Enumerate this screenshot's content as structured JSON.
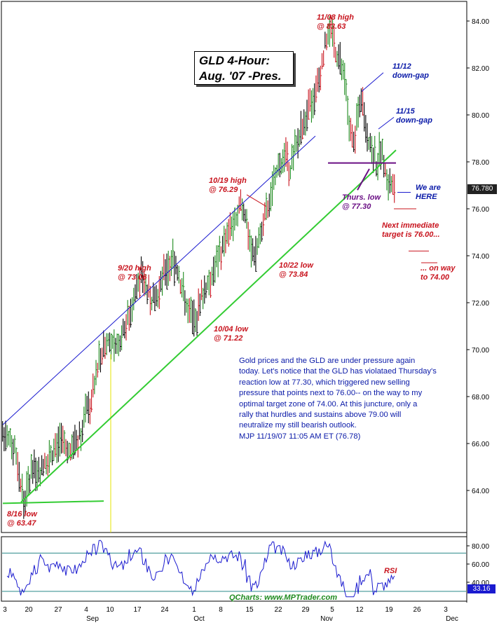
{
  "chart_data": [
    {
      "type": "ohlc",
      "panel": "price",
      "title_lines": [
        "GLD 4-Hour:",
        "Aug. '07 -Pres."
      ],
      "ylim": [
        62.5,
        84.8
      ],
      "y_ticks": [
        "64.00",
        "66.00",
        "68.00",
        "70.00",
        "72.00",
        "74.00",
        "76.00",
        "78.00",
        "80.00",
        "82.00",
        "84.00"
      ],
      "last_price_label": "76.780",
      "x_labels": [
        "3",
        "Sep",
        "10",
        "17",
        "24",
        "Oct",
        "8",
        "15",
        "22",
        "29",
        "Nov",
        "12",
        "19",
        "26",
        "3",
        "Dec"
      ],
      "x_labels_top": [
        "3",
        "10",
        "17",
        "24",
        "1",
        "8",
        "15",
        "22",
        "29",
        "5",
        "12",
        "19",
        "26",
        "3"
      ],
      "close_path": [
        [
          0,
          66.4
        ],
        [
          1,
          66.1
        ],
        [
          2,
          65.9
        ],
        [
          3,
          64.6
        ],
        [
          4,
          63.5
        ],
        [
          5,
          64.2
        ],
        [
          6,
          65.1
        ],
        [
          7,
          64.8
        ],
        [
          8,
          65.0
        ],
        [
          9,
          65.2
        ],
        [
          10,
          65.6
        ],
        [
          11,
          65.7
        ],
        [
          12,
          66.1
        ],
        [
          13,
          65.9
        ],
        [
          14,
          65.6
        ],
        [
          15,
          66.0
        ],
        [
          16,
          66.3
        ],
        [
          17,
          66.7
        ],
        [
          18,
          67.4
        ],
        [
          19,
          67.8
        ],
        [
          20,
          68.9
        ],
        [
          21,
          69.8
        ],
        [
          22,
          70.2
        ],
        [
          23,
          70.5
        ],
        [
          24,
          69.9
        ],
        [
          25,
          70.3
        ],
        [
          26,
          70.8
        ],
        [
          27,
          71.3
        ],
        [
          28,
          71.9
        ],
        [
          29,
          72.6
        ],
        [
          30,
          73.06
        ],
        [
          31,
          72.7
        ],
        [
          32,
          72.2
        ],
        [
          33,
          72.0
        ],
        [
          34,
          72.4
        ],
        [
          35,
          73.1
        ],
        [
          36,
          73.6
        ],
        [
          37,
          73.9
        ],
        [
          38,
          73.4
        ],
        [
          39,
          72.6
        ],
        [
          40,
          71.9
        ],
        [
          41,
          71.4
        ],
        [
          42,
          71.22
        ],
        [
          43,
          72.0
        ],
        [
          44,
          72.6
        ],
        [
          45,
          73.0
        ],
        [
          46,
          73.4
        ],
        [
          47,
          73.8
        ],
        [
          48,
          74.4
        ],
        [
          49,
          74.9
        ],
        [
          50,
          75.3
        ],
        [
          51,
          75.7
        ],
        [
          52,
          76.29
        ],
        [
          53,
          75.6
        ],
        [
          54,
          74.6
        ],
        [
          55,
          73.84
        ],
        [
          56,
          74.6
        ],
        [
          57,
          75.4
        ],
        [
          58,
          76.0
        ],
        [
          59,
          76.8
        ],
        [
          60,
          77.5
        ],
        [
          61,
          77.9
        ],
        [
          62,
          78.3
        ],
        [
          63,
          77.8
        ],
        [
          64,
          78.4
        ],
        [
          65,
          79.1
        ],
        [
          66,
          79.6
        ],
        [
          67,
          80.1
        ],
        [
          68,
          80.6
        ],
        [
          69,
          81.4
        ],
        [
          70,
          82.3
        ],
        [
          71,
          83.2
        ],
        [
          72,
          83.63
        ],
        [
          73,
          82.8
        ],
        [
          74,
          82.2
        ],
        [
          75,
          81.3
        ],
        [
          76,
          79.6
        ],
        [
          77,
          78.9
        ],
        [
          78,
          80.2
        ],
        [
          79,
          80.4
        ],
        [
          80,
          79.1
        ],
        [
          81,
          78.6
        ],
        [
          82,
          77.9
        ],
        [
          83,
          78.6
        ],
        [
          84,
          77.5
        ],
        [
          85,
          77.1
        ],
        [
          86,
          76.78
        ]
      ],
      "lines": {
        "support_trendline_color": "#33cc33",
        "channel_line_color": "#1a1acf",
        "resistance_color": "#6a0f84",
        "support_level": 77.95
      },
      "annotations": {
        "low_816": [
          "8/16 low",
          "@ 63.47"
        ],
        "high_920": [
          "9/20 high",
          "@ 73.06"
        ],
        "low_1004": [
          "10/04 low",
          "@ 71.22"
        ],
        "high_1019": [
          "10/19 high",
          "@ 76.29"
        ],
        "low_1022": [
          "10/22 low",
          "@ 73.84"
        ],
        "high_1108": [
          "11/08 high",
          "@ 83.63"
        ],
        "gap_1112": [
          "11/12",
          "down-gap"
        ],
        "gap_1115": [
          "11/15",
          "down-gap"
        ],
        "thurs_low": [
          "Thurs. low",
          "@ 77.30"
        ],
        "we_are_here": [
          "We are",
          "HERE"
        ],
        "next_target": [
          "Next immediate",
          "target is 76.00..."
        ],
        "on_way": [
          "... on way",
          "to 74.00"
        ]
      }
    },
    {
      "type": "line",
      "panel": "indicator",
      "series": [
        {
          "name": "RSI",
          "last_value_label": "33.16"
        }
      ],
      "ylim": [
        20,
        90
      ],
      "y_ticks": [
        "40.00",
        "60.00",
        "80.00"
      ],
      "guide_lines": [
        72,
        30
      ],
      "source_label": "QCharts: www.MPTrader.com"
    }
  ],
  "commentary": [
    "Gold prices and the GLD are under pressure again",
    "today. Let's notice that the GLD has violataed Thursday's",
    "reaction low at 77.30, which triggered new selling",
    "pressure that points next to 76.00-- on the way to my",
    "optimal target zone of 74.00. At this juncture, only a",
    "rally that hurdles and sustains above 79.00 will",
    "neutralize my still bearish outlook.",
    "MJP  11/19/07 11:05 AM ET (76.78)"
  ],
  "colors": {
    "up_bar": "#1e8a1e",
    "down_bar": "#c8141e",
    "neutral_bar": "#000000",
    "gap_highlight": "#e6e600",
    "rsi_line": "#1a1acf"
  }
}
